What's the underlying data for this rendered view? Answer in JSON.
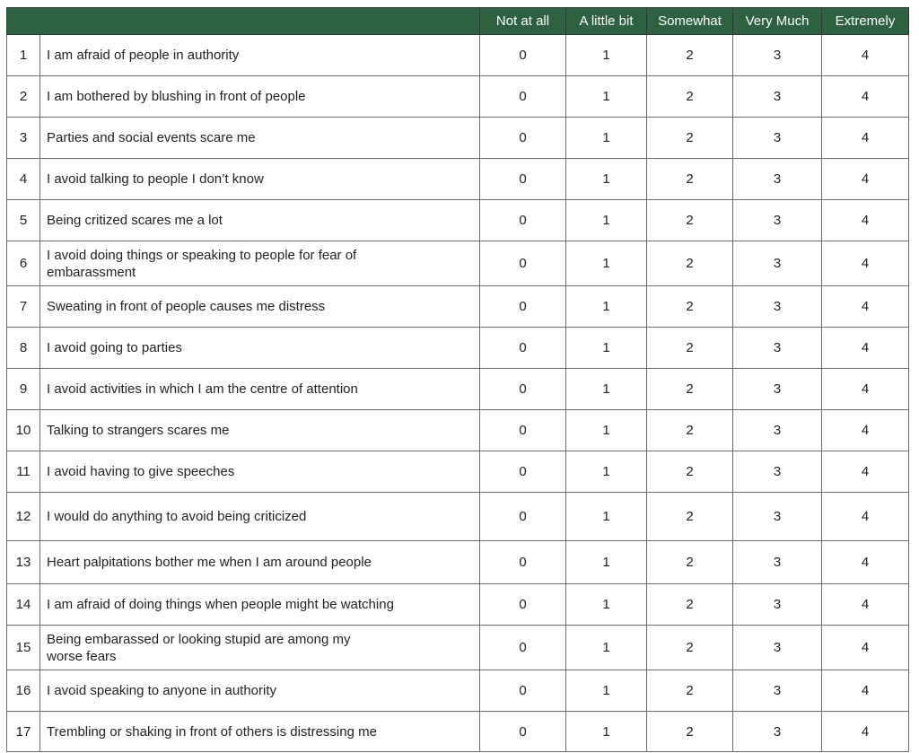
{
  "header": {
    "columns": [
      "Not at all",
      "A little bit",
      "Somewhat",
      "Very Much",
      "Extremely"
    ]
  },
  "colors": {
    "header_bg": "#2e6142"
  },
  "rows": [
    {
      "n": "1",
      "text": "I am afraid of people in authority",
      "values": [
        "0",
        "1",
        "2",
        "3",
        "4"
      ]
    },
    {
      "n": "2",
      "text": "I am bothered by blushing in front of people",
      "values": [
        "0",
        "1",
        "2",
        "3",
        "4"
      ]
    },
    {
      "n": "3",
      "text": "Parties and social events scare me",
      "values": [
        "0",
        "1",
        "2",
        "3",
        "4"
      ]
    },
    {
      "n": "4",
      "text": "I avoid talking to people I don’t know",
      "values": [
        "0",
        "1",
        "2",
        "3",
        "4"
      ]
    },
    {
      "n": "5",
      "text": "Being critized scares me a lot",
      "values": [
        "0",
        "1",
        "2",
        "3",
        "4"
      ]
    },
    {
      "n": "6",
      "text": "I avoid doing things or speaking to people for fear of embarassment",
      "values": [
        "0",
        "1",
        "2",
        "3",
        "4"
      ]
    },
    {
      "n": "7",
      "text": "Sweating in front of people causes me distress",
      "values": [
        "0",
        "1",
        "2",
        "3",
        "4"
      ]
    },
    {
      "n": "8",
      "text": "I avoid going to parties",
      "values": [
        "0",
        "1",
        "2",
        "3",
        "4"
      ]
    },
    {
      "n": "9",
      "text": "I avoid activities in which I am the centre of attention",
      "values": [
        "0",
        "1",
        "2",
        "3",
        "4"
      ]
    },
    {
      "n": "10",
      "text": "Talking to strangers scares me",
      "values": [
        "0",
        "1",
        "2",
        "3",
        "4"
      ]
    },
    {
      "n": "11",
      "text": "I avoid having to give speeches",
      "values": [
        "0",
        "1",
        "2",
        "3",
        "4"
      ]
    },
    {
      "n": "12",
      "text": "I would do anything to avoid being criticized",
      "values": [
        "0",
        "1",
        "2",
        "3",
        "4"
      ]
    },
    {
      "n": "13",
      "text": "Heart palpitations bother me when I am around people",
      "values": [
        "0",
        "1",
        "2",
        "3",
        "4"
      ]
    },
    {
      "n": "14",
      "text": "I am afraid of doing things when people might be watching",
      "values": [
        "0",
        "1",
        "2",
        "3",
        "4"
      ]
    },
    {
      "n": "15",
      "text": "Being embarassed or looking stupid are among my worse fears",
      "values": [
        "0",
        "1",
        "2",
        "3",
        "4"
      ]
    },
    {
      "n": "16",
      "text": "I avoid speaking to anyone in authority",
      "values": [
        "0",
        "1",
        "2",
        "3",
        "4"
      ]
    },
    {
      "n": "17",
      "text": "Trembling or shaking in front of others is distressing me",
      "values": [
        "0",
        "1",
        "2",
        "3",
        "4"
      ]
    }
  ]
}
